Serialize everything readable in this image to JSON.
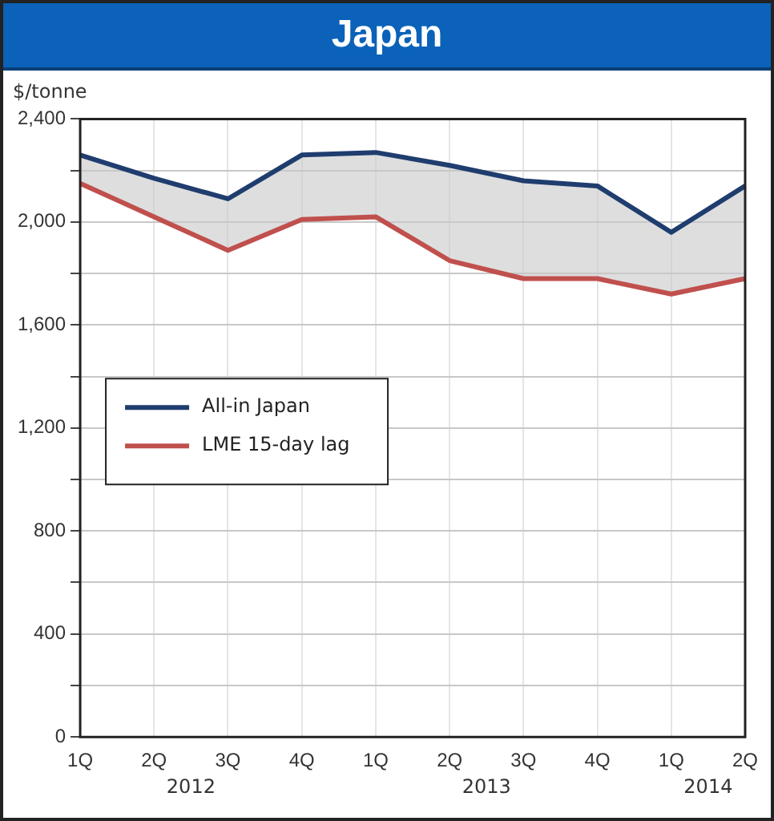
{
  "chart_data": {
    "type": "line",
    "title": "Japan",
    "ylabel": "$/tonne",
    "categories": [
      "1Q",
      "2Q",
      "3Q",
      "4Q",
      "1Q",
      "2Q",
      "3Q",
      "4Q",
      "1Q",
      "2Q"
    ],
    "annotations": [
      "2012",
      "2013",
      "2014"
    ],
    "series": [
      {
        "name": "All-in Japan",
        "color": "#1f3d6e",
        "values": [
          2260,
          2170,
          2090,
          2260,
          2270,
          2220,
          2160,
          2140,
          1960,
          2140
        ],
        "lower": [
          2150,
          2020,
          1890,
          2010,
          2020,
          1850,
          1780,
          1780,
          1720,
          1780
        ],
        "upper": [
          2260,
          2170,
          2090,
          2260,
          2270,
          2220,
          2160,
          2140,
          1960,
          2140
        ]
      },
      {
        "name": "LME 15-day lag",
        "color": "#c0504d",
        "values": [
          2150,
          2020,
          1890,
          2010,
          2020,
          1850,
          1780,
          1780,
          1720,
          1780
        ]
      }
    ],
    "ylim": [
      0,
      2400
    ],
    "yticks": [
      0,
      {
        "value": 200,
        "label": null
      },
      {
        "value": 400,
        "label": "400"
      },
      {
        "value": 600,
        "label": null
      },
      {
        "value": 800,
        "label": "800"
      },
      {
        "value": 1000,
        "label": null
      },
      {
        "value": 1200,
        "label": "1,200"
      },
      {
        "value": 1400,
        "label": null
      },
      {
        "value": 1600,
        "label": "1,600"
      },
      {
        "value": 1800,
        "label": null
      },
      {
        "value": 2000,
        "label": "2,000"
      },
      {
        "value": 2200,
        "label": null
      },
      {
        "value": 2400,
        "label": "2,400"
      }
    ],
    "grid": true,
    "legend": "left",
    "marker": "none",
    "line_style": "solid"
  }
}
